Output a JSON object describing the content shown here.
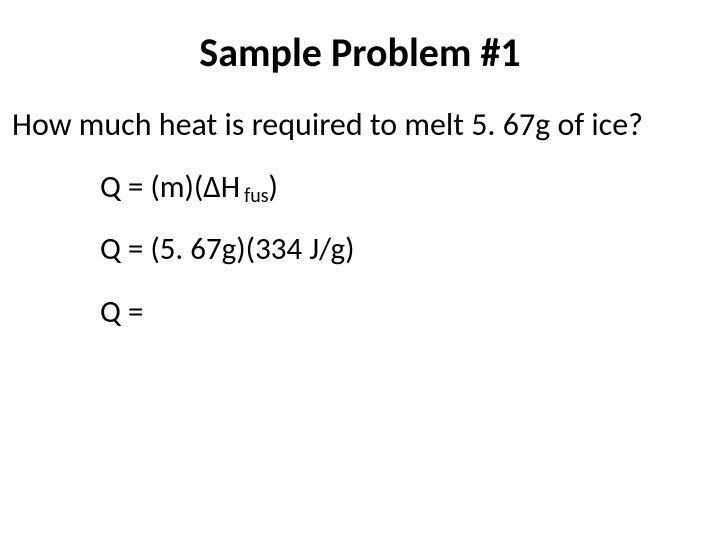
{
  "slide": {
    "title": "Sample Problem #1",
    "title_fontsize": 40,
    "title_fontweight": 700,
    "question": "How much heat is required to melt 5. 67g of ice?",
    "question_fontsize": 32,
    "eq1_prefix": "Q = (m)(ΔH",
    "eq1_sub": "fus",
    "eq1_suffix": ")",
    "eq2": "Q = (5. 67g)(334 J/g)",
    "eq3": "Q =",
    "eq_fontsize": 31,
    "sub_fontsize": 20,
    "background_color": "#ffffff",
    "text_color": "#000000",
    "font_family": "Calibri, Arial, sans-serif"
  }
}
